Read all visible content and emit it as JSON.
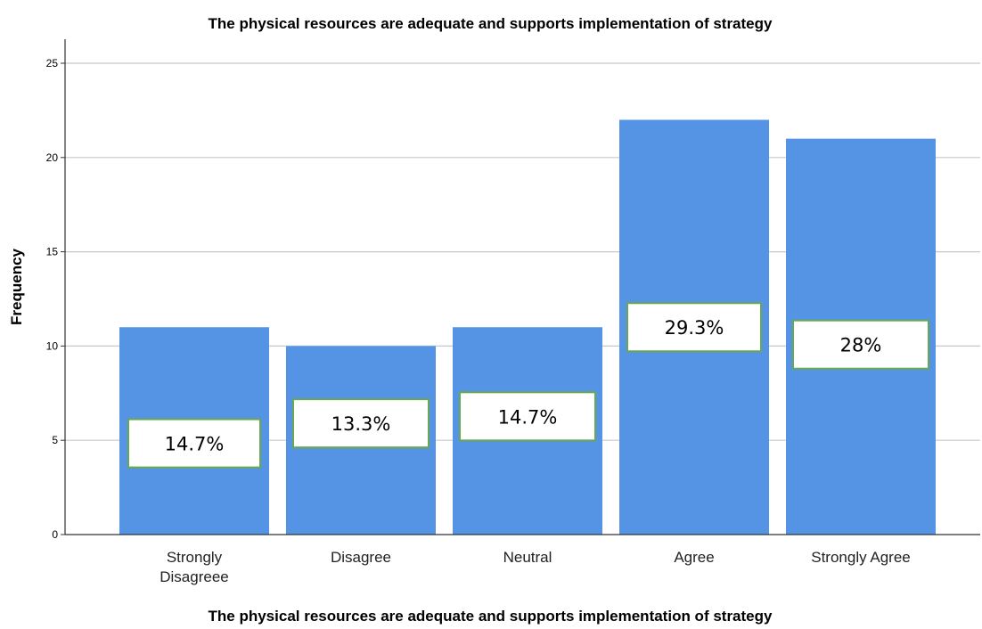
{
  "colors": {
    "bar": "#5594e4",
    "label_border": "#6aa84f",
    "grid": "#c8c8c8",
    "axis": "#333333"
  },
  "chart_data": {
    "type": "bar",
    "title": "The physical resources are adequate and supports implementation of strategy",
    "xlabel": "The physical resources are adequate and supports implementation of strategy",
    "ylabel": "Frequency",
    "categories": [
      [
        "Strongly",
        "Disagreee"
      ],
      [
        "Disagree"
      ],
      [
        "Neutral"
      ],
      [
        "Agree"
      ],
      [
        "Strongly Agree"
      ]
    ],
    "values": [
      11,
      10,
      11,
      22,
      21
    ],
    "data_labels": [
      "14.7%",
      "13.3%",
      "14.7%",
      "29.3%",
      "28%"
    ],
    "ylim": [
      0,
      25
    ],
    "yticks": [
      0,
      5,
      10,
      15,
      20,
      25
    ],
    "grid": true
  }
}
